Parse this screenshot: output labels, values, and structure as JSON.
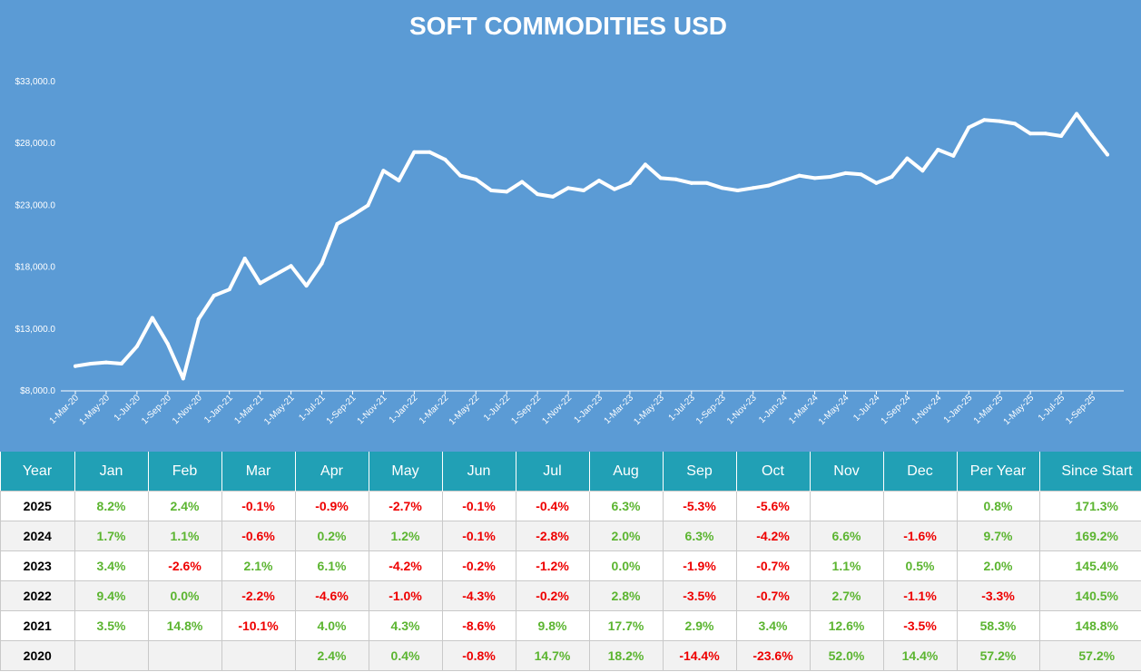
{
  "chart_data": {
    "type": "area",
    "title": "SOFT COMMODITIES USD",
    "y_tick_labels": [
      "$8,000.0",
      "$13,000.0",
      "$18,000.0",
      "$23,000.0",
      "$28,000.0",
      "$33,000.0"
    ],
    "y_ticks": [
      8000,
      13000,
      18000,
      23000,
      28000,
      33000
    ],
    "ylim": [
      8000,
      33000
    ],
    "x_tick_labels": [
      "1-Mar-20",
      "1-May-20",
      "1-Jul-20",
      "1-Sep-20",
      "1-Nov-20",
      "1-Jan-21",
      "1-Mar-21",
      "1-May-21",
      "1-Jul-21",
      "1-Sep-21",
      "1-Nov-21",
      "1-Jan-22",
      "1-Mar-22",
      "1-May-22",
      "1-Jul-22",
      "1-Sep-22",
      "1-Nov-22",
      "1-Jan-23",
      "1-Mar-23",
      "1-May-23",
      "1-Jul-23",
      "1-Sep-23",
      "1-Nov-23",
      "1-Jan-24",
      "1-Mar-24",
      "1-May-24",
      "1-Jul-24",
      "1-Sep-24",
      "1-Nov-24",
      "1-Jan-25",
      "1-Mar-25",
      "1-May-25",
      "1-Jul-25",
      "1-Sep-25"
    ],
    "x_tick_every": 2,
    "x_start": "2020-03-01",
    "series": [
      {
        "values": [
          10000,
          10200,
          10300,
          10200,
          11600,
          13900,
          11800,
          9000,
          13800,
          15700,
          16200,
          18700,
          16700,
          17400,
          18100,
          16500,
          18300,
          21500,
          22200,
          23000,
          25800,
          25000,
          27300,
          27300,
          26700,
          25400,
          25100,
          24200,
          24100,
          24900,
          23900,
          23700,
          24400,
          24200,
          25000,
          24300,
          24800,
          26300,
          25200,
          25100,
          24800,
          24800,
          24400,
          24200,
          24400,
          24600,
          25000,
          25400,
          25200,
          25300,
          25600,
          25500,
          24800,
          25300,
          26800,
          25800,
          27500,
          27000,
          29300,
          29900,
          29800,
          29600,
          28800,
          28800,
          28600,
          30400,
          28700,
          27100
        ]
      }
    ],
    "grid": false,
    "legend": "none"
  },
  "table": {
    "headers": [
      "Year",
      "Jan",
      "Feb",
      "Mar",
      "Apr",
      "May",
      "Jun",
      "Jul",
      "Aug",
      "Sep",
      "Oct",
      "Nov",
      "Dec",
      "Per Year",
      "Since Start"
    ],
    "rows": [
      [
        "2025",
        "8.2%",
        "2.4%",
        "-0.1%",
        "-0.9%",
        "-2.7%",
        "-0.1%",
        "-0.4%",
        "6.3%",
        "-5.3%",
        "-5.6%",
        "",
        "",
        "0.8%",
        "171.3%"
      ],
      [
        "2024",
        "1.7%",
        "1.1%",
        "-0.6%",
        "0.2%",
        "1.2%",
        "-0.1%",
        "-2.8%",
        "2.0%",
        "6.3%",
        "-4.2%",
        "6.6%",
        "-1.6%",
        "9.7%",
        "169.2%"
      ],
      [
        "2023",
        "3.4%",
        "-2.6%",
        "2.1%",
        "6.1%",
        "-4.2%",
        "-0.2%",
        "-1.2%",
        "0.0%",
        "-1.9%",
        "-0.7%",
        "1.1%",
        "0.5%",
        "2.0%",
        "145.4%"
      ],
      [
        "2022",
        "9.4%",
        "0.0%",
        "-2.2%",
        "-4.6%",
        "-1.0%",
        "-4.3%",
        "-0.2%",
        "2.8%",
        "-3.5%",
        "-0.7%",
        "2.7%",
        "-1.1%",
        "-3.3%",
        "140.5%"
      ],
      [
        "2021",
        "3.5%",
        "14.8%",
        "-10.1%",
        "4.0%",
        "4.3%",
        "-8.6%",
        "9.8%",
        "17.7%",
        "2.9%",
        "3.4%",
        "12.6%",
        "-3.5%",
        "58.3%",
        "148.8%"
      ],
      [
        "2020",
        "",
        "",
        "",
        "2.4%",
        "0.4%",
        "-0.8%",
        "14.7%",
        "18.2%",
        "-14.4%",
        "-23.6%",
        "52.0%",
        "14.4%",
        "57.2%",
        "57.2%"
      ]
    ]
  },
  "colors": {
    "chart_background": "#5b9bd5",
    "line": "#ffffff",
    "header_background": "#21a0b5",
    "positive": "#5cb531",
    "negative": "#ee0000"
  }
}
